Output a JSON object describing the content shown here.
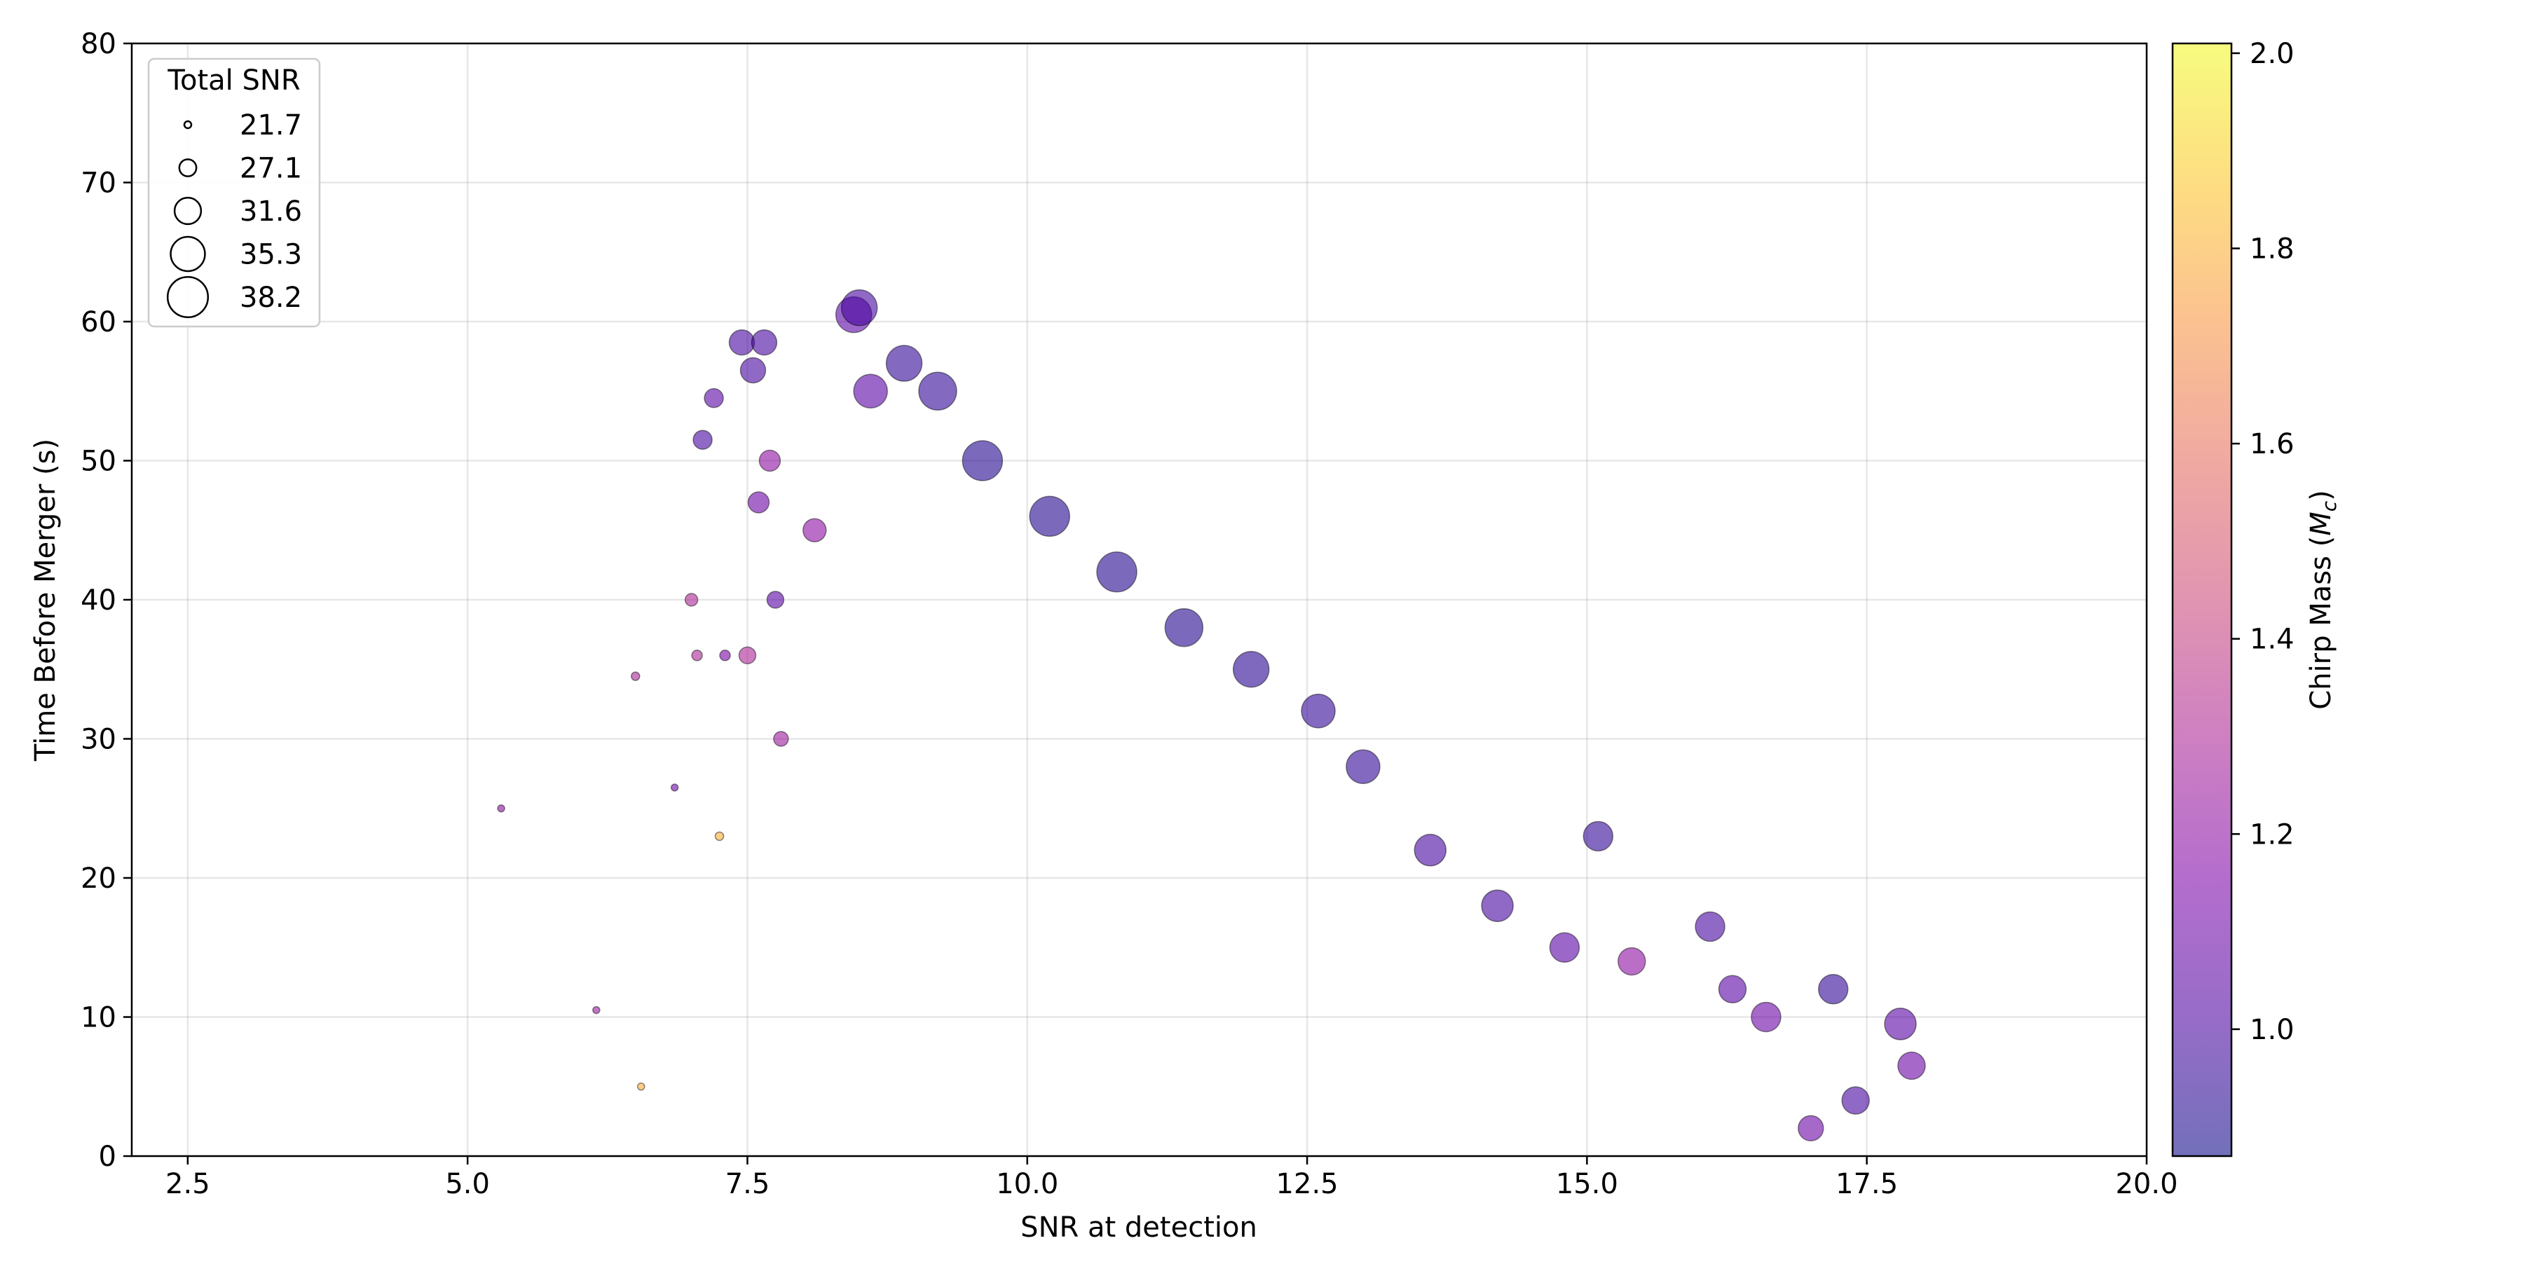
{
  "chart_data": {
    "type": "scatter",
    "title": "",
    "xlabel": "SNR at detection",
    "ylabel": "Time Before Merger (s)",
    "xlim": [
      2.0,
      20.0
    ],
    "ylim": [
      0,
      80
    ],
    "xticks": [
      "2.5",
      "5.0",
      "7.5",
      "10.0",
      "12.5",
      "15.0",
      "17.5",
      "20.0"
    ],
    "yticks": [
      "0",
      "10",
      "20",
      "30",
      "40",
      "50",
      "60",
      "70",
      "80"
    ],
    "grid": true,
    "colormap": "plasma",
    "colorbar": {
      "label": "Chirp Mass (M_c)",
      "label_main": "Chirp Mass (",
      "label_symbol": "M",
      "label_sub": "c",
      "label_end": ")",
      "range": [
        0.87,
        2.01
      ],
      "ticks": [
        "1.0",
        "1.2",
        "1.4",
        "1.6",
        "1.8",
        "2.0"
      ]
    },
    "size_legend": {
      "title": "Total SNR",
      "placement": "top-left",
      "entries": [
        "21.7",
        "27.1",
        "31.6",
        "35.3",
        "38.2"
      ]
    },
    "series": [
      {
        "points_note_free": true,
        "x": [
          5.3,
          6.15,
          6.5,
          6.55,
          6.85,
          7.0,
          7.05,
          7.1,
          7.2,
          7.25,
          7.3,
          7.45,
          7.5,
          7.55,
          7.6,
          7.65,
          7.7,
          7.75,
          7.8,
          8.1,
          8.45,
          8.5,
          8.6,
          8.9,
          9.2,
          9.6,
          10.2,
          10.8,
          11.4,
          12.0,
          12.6,
          13.0,
          13.6,
          14.2,
          14.8,
          15.1,
          15.4,
          16.1,
          16.3,
          16.6,
          17.0,
          17.2,
          17.4,
          17.8,
          17.9
        ],
        "y": [
          25.0,
          10.5,
          34.5,
          5.0,
          26.5,
          40.0,
          36.0,
          51.5,
          54.5,
          23.0,
          36.0,
          58.5,
          36.0,
          56.5,
          47.0,
          58.5,
          50.0,
          40.0,
          30.0,
          45.0,
          60.5,
          61.0,
          55.0,
          57.0,
          55.0,
          50.0,
          46.0,
          42.0,
          38.0,
          35.0,
          32.0,
          28.0,
          22.0,
          18.0,
          15.0,
          23.0,
          14.0,
          16.5,
          12.0,
          10.0,
          2.0,
          12.0,
          4.0,
          9.5,
          6.5
        ],
        "size_snr": [
          21.7,
          21.7,
          23.0,
          22.0,
          21.7,
          25.0,
          24.0,
          28.0,
          28.0,
          23.0,
          24.0,
          31.0,
          27.0,
          31.0,
          29.0,
          31.0,
          29.0,
          27.0,
          26.0,
          30.0,
          36.0,
          36.0,
          35.0,
          36.0,
          37.0,
          38.0,
          38.0,
          38.0,
          37.0,
          36.0,
          35.0,
          35.0,
          34.0,
          34.0,
          33.0,
          33.0,
          32.0,
          33.0,
          32.0,
          33.0,
          31.0,
          33.0,
          32.0,
          34.0,
          32.0
        ],
        "chirp_mass": [
          1.2,
          1.25,
          1.3,
          1.8,
          1.1,
          1.3,
          1.3,
          1.0,
          1.05,
          1.8,
          1.15,
          1.0,
          1.3,
          1.0,
          1.1,
          1.0,
          1.2,
          1.05,
          1.25,
          1.2,
          1.05,
          1.0,
          1.05,
          0.95,
          0.95,
          0.92,
          0.92,
          0.92,
          0.92,
          0.93,
          0.95,
          0.95,
          1.0,
          1.0,
          1.05,
          0.95,
          1.2,
          1.0,
          1.05,
          1.1,
          1.1,
          0.95,
          1.0,
          1.05,
          1.1
        ]
      }
    ]
  }
}
